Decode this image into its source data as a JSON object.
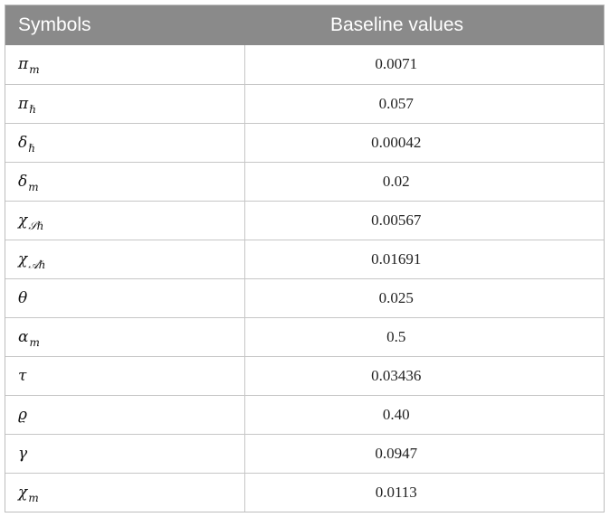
{
  "table": {
    "headers": {
      "symbols": "Symbols",
      "values": "Baseline values"
    },
    "rows": [
      {
        "base": "π",
        "sub": "m",
        "value": "0.0071"
      },
      {
        "base": "π",
        "sub": "ℏ",
        "value": "0.057"
      },
      {
        "base": "δ",
        "sub": "ℏ",
        "value": "0.00042"
      },
      {
        "base": "δ",
        "sub": "m",
        "value": "0.02"
      },
      {
        "base": "χ",
        "sub": "𝒮ℏ",
        "value": "0.00567"
      },
      {
        "base": "χ",
        "sub": "𝒜ℏ",
        "value": "0.01691"
      },
      {
        "base": "θ",
        "sub": "",
        "value": "0.025"
      },
      {
        "base": "α",
        "sub": "m",
        "value": "0.5"
      },
      {
        "base": "τ",
        "sub": "",
        "value": "0.03436"
      },
      {
        "base": "ϱ",
        "sub": "",
        "value": "0.40"
      },
      {
        "base": "γ",
        "sub": "",
        "value": "0.0947"
      },
      {
        "base": "χ",
        "sub": "m",
        "value": "0.0113"
      }
    ]
  }
}
